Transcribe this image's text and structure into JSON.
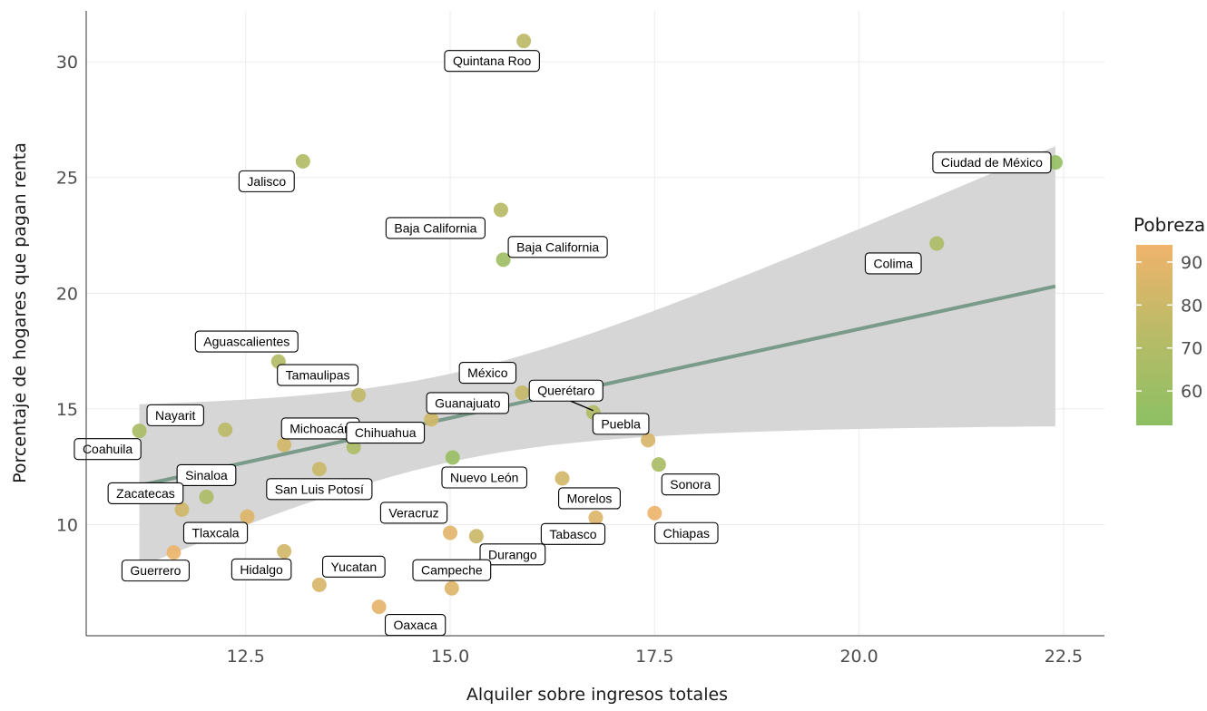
{
  "chart_data": {
    "type": "scatter",
    "title": "",
    "xlabel": "Alquiler sobre ingresos totales",
    "ylabel": "Porcentaje de hogares que pagan renta",
    "xlim": [
      10.55,
      23.0
    ],
    "ylim": [
      5.2,
      32.2
    ],
    "xticks": [
      12.5,
      15.0,
      17.5,
      20.0,
      22.5
    ],
    "yticks": [
      10,
      15,
      20,
      25,
      30
    ],
    "xtick_labels": [
      "12.5",
      "15.0",
      "17.5",
      "20.0",
      "22.5"
    ],
    "ytick_labels": [
      "10",
      "15",
      "20",
      "25",
      "30"
    ],
    "grid": true,
    "color_legend": {
      "title": "Pobreza",
      "ticks": [
        90,
        80,
        70,
        60
      ],
      "tick_labels": [
        "90",
        "80",
        "70",
        "60"
      ],
      "range": [
        52,
        94
      ],
      "low_color": "#8cc063",
      "high_color": "#f0b36c",
      "placement": "right"
    },
    "trend": {
      "type": "linear",
      "x_range": [
        11.2,
        22.4
      ],
      "fit": [
        11.69,
        20.3
      ],
      "ci_lower": [
        8.4,
        14.25
      ],
      "ci_upper": [
        15.2,
        26.35
      ],
      "line_color": "#7a9a8a",
      "band_color": "#d6d6d6"
    },
    "points": [
      {
        "name": "Quintana Roo",
        "x": 15.9,
        "y": 30.9,
        "pobreza": 72
      },
      {
        "name": "Jalisco",
        "x": 13.2,
        "y": 25.7,
        "pobreza": 68
      },
      {
        "name": "Ciudad de México",
        "x": 22.4,
        "y": 25.65,
        "pobreza": 56
      },
      {
        "name": "Baja California",
        "x": 15.62,
        "y": 23.6,
        "pobreza": 70
      },
      {
        "name": "Baja California",
        "x": 15.65,
        "y": 21.45,
        "pobreza": 60
      },
      {
        "name": "Colima",
        "x": 20.95,
        "y": 22.15,
        "pobreza": 66
      },
      {
        "name": "Aguascalientes",
        "x": 12.9,
        "y": 17.05,
        "pobreza": 68
      },
      {
        "name": "Tamaulipas",
        "x": 13.88,
        "y": 15.6,
        "pobreza": 74
      },
      {
        "name": "México",
        "x": 15.88,
        "y": 15.7,
        "pobreza": 76
      },
      {
        "name": "Querétaro",
        "x": 16.75,
        "y": 14.85,
        "pobreza": 68
      },
      {
        "name": "Puebla",
        "x": 17.42,
        "y": 13.65,
        "pobreza": 84
      },
      {
        "name": "Nayarit",
        "x": 12.25,
        "y": 14.1,
        "pobreza": 72
      },
      {
        "name": "Michoacán",
        "x": 12.97,
        "y": 13.45,
        "pobreza": 82
      },
      {
        "name": "Chihuahua",
        "x": 13.82,
        "y": 13.35,
        "pobreza": 66
      },
      {
        "name": "Guanajuato",
        "x": 14.77,
        "y": 14.55,
        "pobreza": 80
      },
      {
        "name": "Coahuila",
        "x": 11.2,
        "y": 14.05,
        "pobreza": 64
      },
      {
        "name": "Nuevo León",
        "x": 15.03,
        "y": 12.9,
        "pobreza": 58
      },
      {
        "name": "Sonora",
        "x": 17.55,
        "y": 12.6,
        "pobreza": 64
      },
      {
        "name": "Sinaloa",
        "x": 12.02,
        "y": 11.2,
        "pobreza": 66
      },
      {
        "name": "San Luis Potosí",
        "x": 13.4,
        "y": 12.4,
        "pobreza": 78
      },
      {
        "name": "Morelos",
        "x": 16.37,
        "y": 12.0,
        "pobreza": 82
      },
      {
        "name": "Zacatecas",
        "x": 11.72,
        "y": 10.65,
        "pobreza": 80
      },
      {
        "name": "Tlaxcala",
        "x": 12.52,
        "y": 10.35,
        "pobreza": 86
      },
      {
        "name": "Tabasco",
        "x": 16.78,
        "y": 10.3,
        "pobreza": 86
      },
      {
        "name": "Chiapas",
        "x": 17.5,
        "y": 10.5,
        "pobreza": 92
      },
      {
        "name": "Veracruz",
        "x": 15.0,
        "y": 9.65,
        "pobreza": 88
      },
      {
        "name": "Durango",
        "x": 15.32,
        "y": 9.5,
        "pobreza": 78
      },
      {
        "name": "Guerrero",
        "x": 11.62,
        "y": 8.8,
        "pobreza": 92
      },
      {
        "name": "Hidalgo",
        "x": 12.97,
        "y": 8.85,
        "pobreza": 82
      },
      {
        "name": "Yucatan",
        "x": 13.4,
        "y": 7.4,
        "pobreza": 84
      },
      {
        "name": "Campeche",
        "x": 15.02,
        "y": 7.25,
        "pobreza": 86
      },
      {
        "name": "Oaxaca",
        "x": 14.13,
        "y": 6.45,
        "pobreza": 90
      }
    ]
  }
}
